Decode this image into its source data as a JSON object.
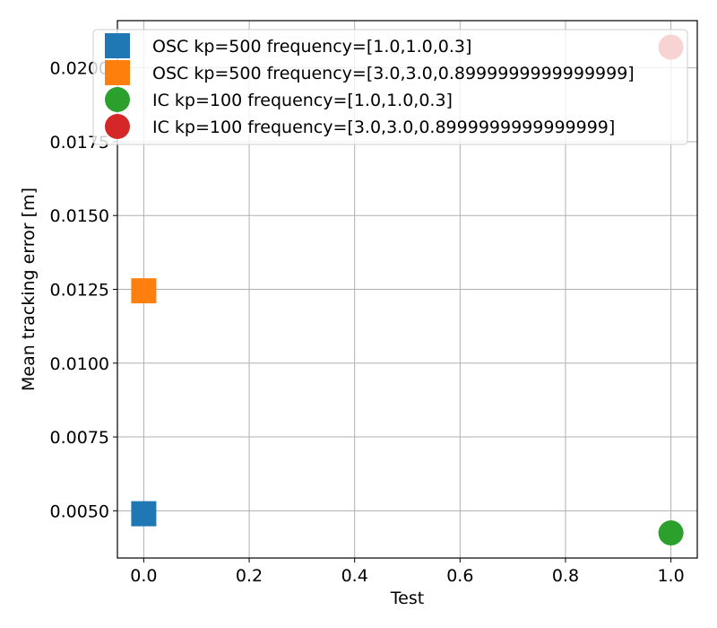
{
  "chart_data": {
    "type": "scatter",
    "title": "",
    "xlabel": "Test",
    "ylabel": "Mean tracking error [m]",
    "xlim": [
      -0.05,
      1.05
    ],
    "ylim": [
      0.0034,
      0.0216
    ],
    "xticks": [
      0.0,
      0.2,
      0.4,
      0.6,
      0.8,
      1.0
    ],
    "xtick_labels": [
      "0.0",
      "0.2",
      "0.4",
      "0.6",
      "0.8",
      "1.0"
    ],
    "yticks": [
      0.005,
      0.0075,
      0.01,
      0.0125,
      0.015,
      0.0175,
      0.02
    ],
    "ytick_labels": [
      "0.0050",
      "0.0075",
      "0.0100",
      "0.0125",
      "0.0150",
      "0.0175",
      "0.0200"
    ],
    "grid": true,
    "legend_position": "top-right",
    "series": [
      {
        "name": "OSC kp=500 frequency=[1.0,1.0,0.3]",
        "marker": "square",
        "color": "#1f77b4",
        "x": [
          0.0
        ],
        "y": [
          0.0049
        ]
      },
      {
        "name": "OSC kp=500 frequency=[3.0,3.0,0.8999999999999999]",
        "marker": "square",
        "color": "#ff7f0e",
        "x": [
          0.0
        ],
        "y": [
          0.01245
        ]
      },
      {
        "name": "IC kp=100 frequency=[1.0,1.0,0.3]",
        "marker": "circle",
        "color": "#2ca02c",
        "x": [
          1.0
        ],
        "y": [
          0.00425
        ]
      },
      {
        "name": "IC kp=100 frequency=[3.0,3.0,0.8999999999999999]",
        "marker": "circle",
        "color": "#d62728",
        "x": [
          1.0
        ],
        "y": [
          0.0207
        ]
      }
    ]
  }
}
